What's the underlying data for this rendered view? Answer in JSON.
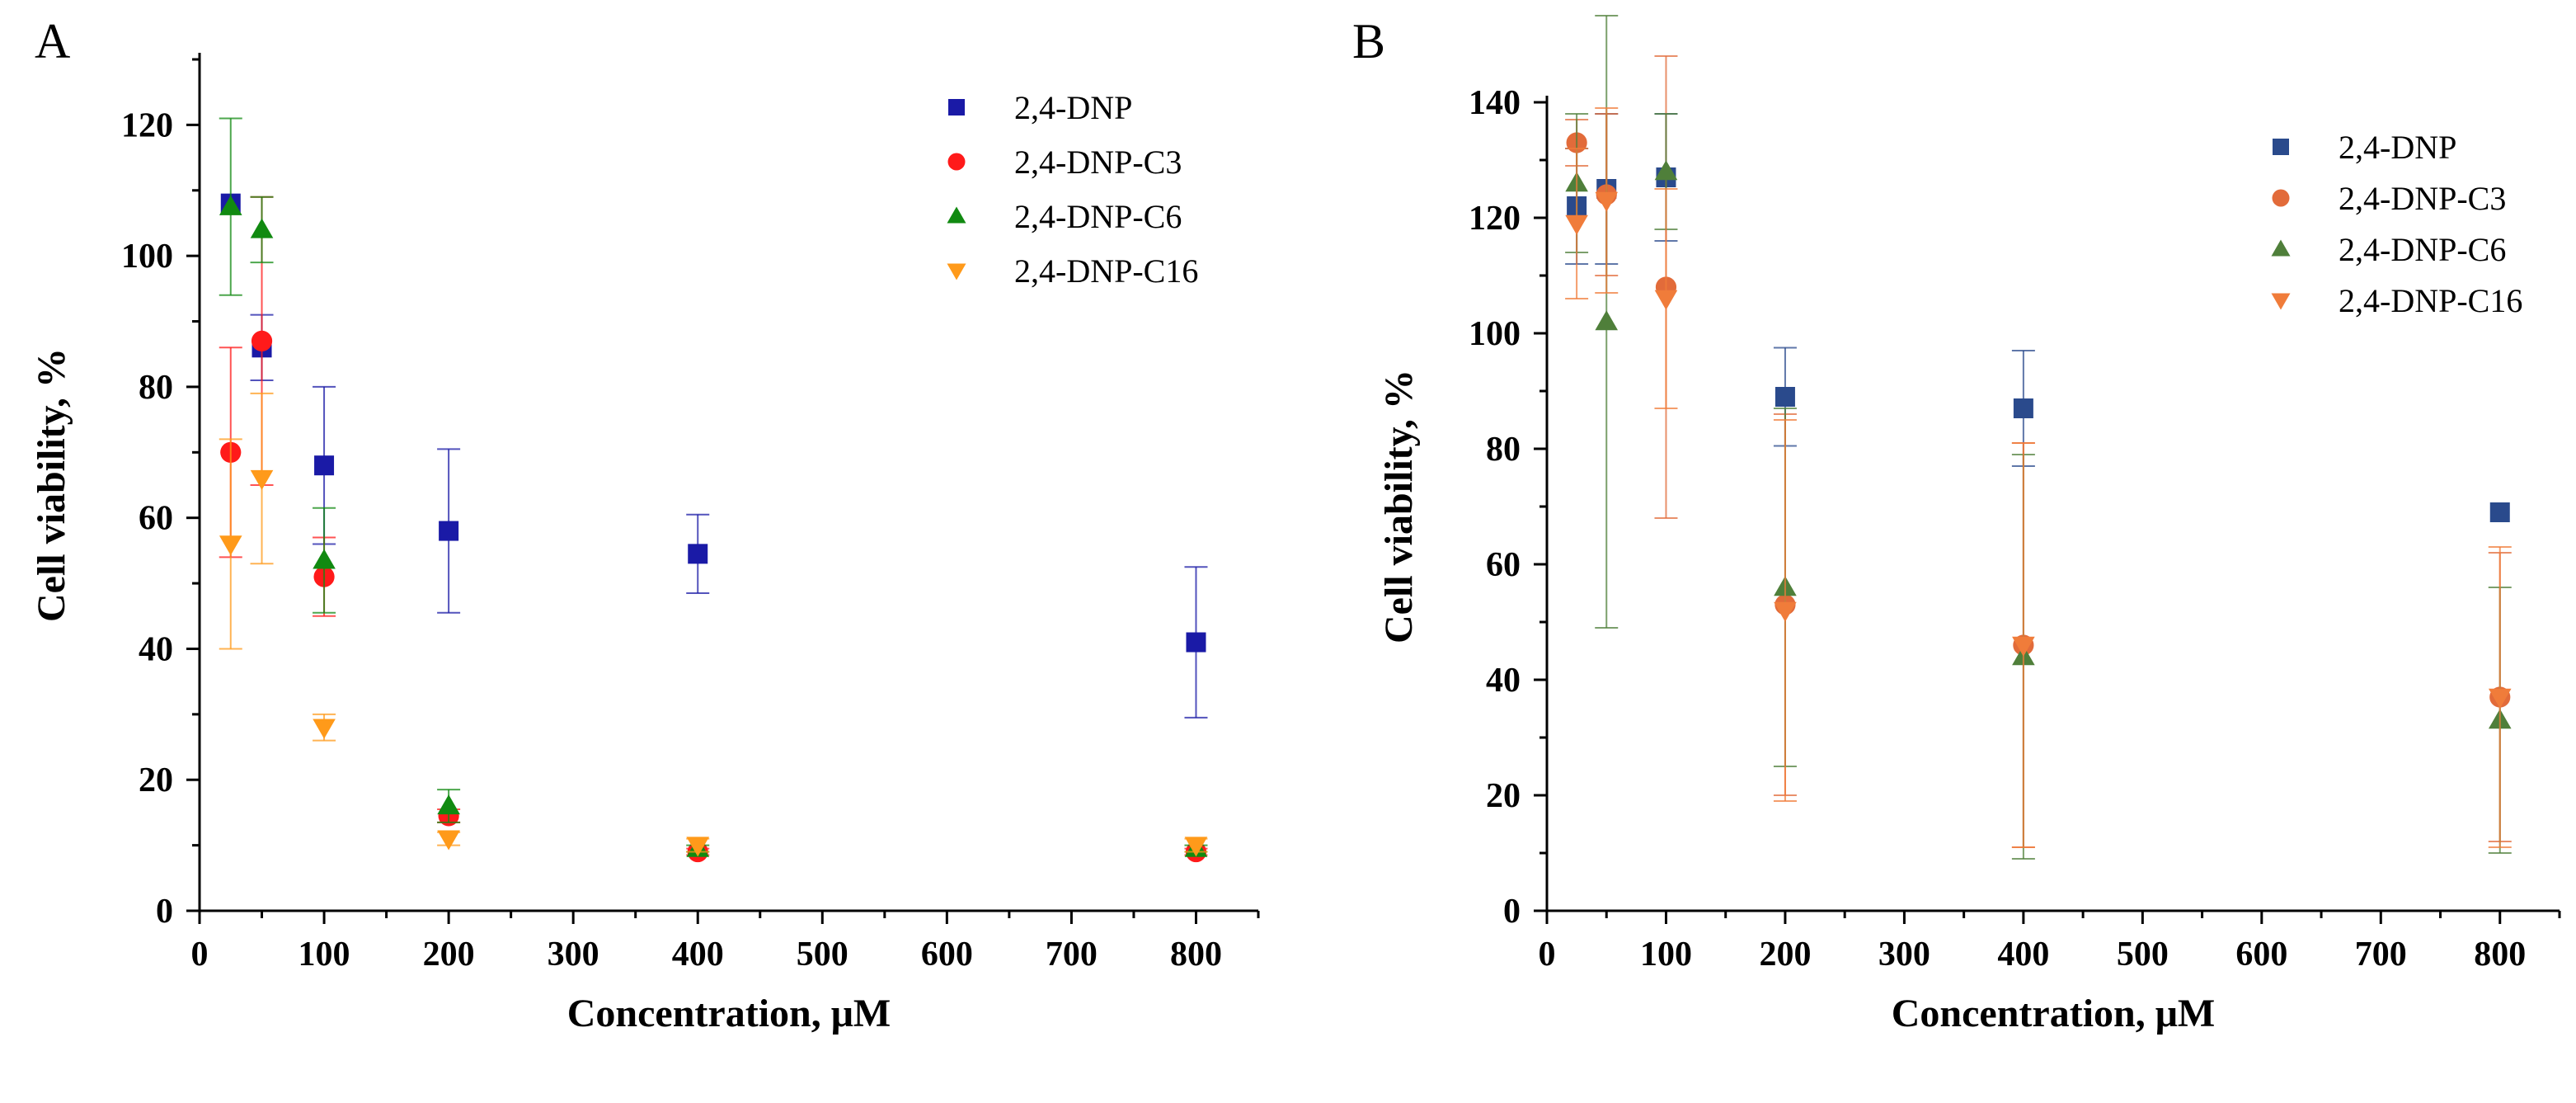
{
  "chart_data": [
    {
      "type": "scatter",
      "panel_label": "A",
      "title": "",
      "xlabel": "Concentration, μM",
      "ylabel": "Cell viability, %",
      "xlim": [
        0,
        850
      ],
      "ylim": [
        0,
        130
      ],
      "xticks": [
        0,
        100,
        200,
        300,
        400,
        500,
        600,
        700,
        800
      ],
      "yticks": [
        0,
        20,
        40,
        60,
        80,
        100,
        120
      ],
      "legend_position": "top-right",
      "x": [
        25,
        50,
        100,
        200,
        400,
        800
      ],
      "series": [
        {
          "name": "2,4-DNP",
          "color": "#1a1aa6",
          "marker": "square",
          "values": [
            108,
            86,
            68,
            58,
            54.5,
            41
          ],
          "errors": [
            0,
            5,
            12,
            12.5,
            6,
            11.5
          ]
        },
        {
          "name": "2,4-DNP-C3",
          "color": "#ff1a1a",
          "marker": "circle",
          "values": [
            70,
            87,
            51,
            14.5,
            9,
            9
          ],
          "errors": [
            16,
            22,
            6,
            1,
            0.5,
            0.5
          ]
        },
        {
          "name": "2,4-DNP-C6",
          "color": "#118a11",
          "marker": "triangle-up",
          "values": [
            107.5,
            104,
            53.5,
            16,
            9.5,
            9.5
          ],
          "errors": [
            13.5,
            5,
            8,
            2.5,
            0.5,
            0.5
          ]
        },
        {
          "name": "2,4-DNP-C16",
          "color": "#ff9a1a",
          "marker": "triangle-down",
          "values": [
            56,
            66,
            28,
            11,
            10,
            10
          ],
          "errors": [
            16,
            13,
            2,
            1,
            1,
            1
          ]
        }
      ]
    },
    {
      "type": "scatter",
      "panel_label": "B",
      "title": "",
      "xlabel": "Concentration, μM",
      "ylabel": "Cell viability, %",
      "xlim": [
        0,
        850
      ],
      "ylim": [
        0,
        140
      ],
      "xticks": [
        0,
        100,
        200,
        300,
        400,
        500,
        600,
        700,
        800
      ],
      "yticks": [
        0,
        20,
        40,
        60,
        80,
        100,
        120,
        140
      ],
      "legend_position": "top-right",
      "x": [
        25,
        50,
        100,
        200,
        400,
        800
      ],
      "series": [
        {
          "name": "2,4-DNP",
          "color": "#2a4a8c",
          "marker": "square",
          "values": [
            122,
            125,
            127,
            89,
            87,
            69
          ],
          "errors": [
            10,
            13,
            11,
            8.5,
            10,
            0
          ]
        },
        {
          "name": "2,4-DNP-C3",
          "color": "#e26b3a",
          "marker": "circle",
          "values": [
            133,
            124,
            108,
            53,
            46,
            37
          ],
          "errors": [
            4,
            14,
            40,
            33,
            35,
            25
          ]
        },
        {
          "name": "2,4-DNP-C6",
          "color": "#4f7f3a",
          "marker": "triangle-up",
          "values": [
            126,
            102,
            128,
            56,
            44,
            33
          ],
          "errors": [
            12,
            53,
            10,
            31,
            35,
            23
          ]
        },
        {
          "name": "2,4-DNP-C16",
          "color": "#f07c3a",
          "marker": "triangle-down",
          "values": [
            119,
            123,
            106,
            52,
            46,
            37
          ],
          "errors": [
            13,
            16,
            19,
            33,
            35,
            26
          ]
        }
      ]
    }
  ]
}
